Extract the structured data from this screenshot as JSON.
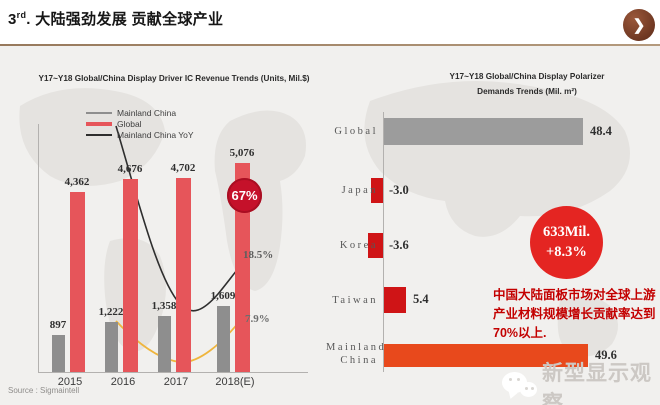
{
  "slide": {
    "title_num": "3",
    "title_sup": "rd",
    "title_rest": ". 大陆强劲发展 贡献全球产业",
    "source": "Source : Sigmaintell",
    "watermark": "新型显示观察"
  },
  "chart_data": [
    {
      "type": "bar",
      "title": "Y17~Y18 Global/China Display Driver IC Revenue Trends (Units, Mil.$)",
      "categories": [
        "2015",
        "2016",
        "2017",
        "2018(E)"
      ],
      "series": [
        {
          "name": "Mainland China",
          "kind": "bar",
          "color": "#8e8e8e",
          "values": [
            897,
            1222,
            1358,
            1609
          ],
          "labels": [
            "897",
            "1,222",
            "1,358",
            "1,609"
          ]
        },
        {
          "name": "Global",
          "kind": "bar",
          "color": "#e6555a",
          "values": [
            4362,
            4676,
            4702,
            5076
          ],
          "labels": [
            "4,362",
            "4,676",
            "4,702",
            "5,076"
          ]
        },
        {
          "name": "Mainland China YoY",
          "kind": "line",
          "color": "#2e2e2e",
          "end_label": "18.5%"
        },
        {
          "name": "Global YoY",
          "kind": "line",
          "color": "#efb53d",
          "end_label": "7.9%",
          "in_legend": false
        }
      ],
      "legend": [
        "Mainland China",
        "Global",
        "Mainland China YoY"
      ],
      "badge": "67%",
      "ylim": [
        0,
        5500
      ],
      "grid": false,
      "legend_position": "top-left"
    },
    {
      "type": "bar",
      "orientation": "horizontal",
      "title": "Y17~Y18 Global/China Display Polarizer Demands Trends (Mil. m²)",
      "title_lines": [
        "Y17~Y18 Global/China Display Polarizer",
        "Demands Trends (Mil. m²)"
      ],
      "categories": [
        "Global",
        "Japan",
        "Korea",
        "Taiwan",
        "Mainland China"
      ],
      "category_display": [
        "Global",
        "Japan",
        "Korea",
        "Taiwan",
        "Mainland\nChina"
      ],
      "values": [
        48.4,
        -3.0,
        -3.6,
        5.4,
        49.6
      ],
      "labels": [
        "48.4",
        "-3.0",
        "-3.6",
        "5.4",
        "49.6"
      ],
      "bar_colors": [
        "#9c9c9c",
        "#cf1416",
        "#cf1416",
        "#cf1416",
        "#e8491c"
      ],
      "badge_lines": [
        "633Mil.",
        "+8.3%"
      ],
      "annotation": "中国大陆面板市场对全球上游产业材料规模增长贡献率达到70%以上."
    }
  ]
}
